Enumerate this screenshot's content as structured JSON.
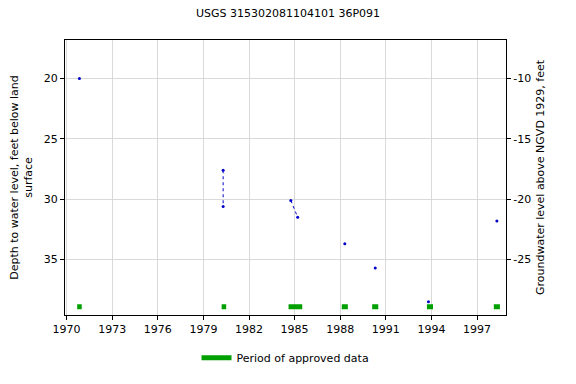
{
  "chart_data": {
    "type": "scatter",
    "title": "USGS 315302081104101 36P091",
    "y_label": "Depth to water level, feet below land\nsurface",
    "y2_label": "Groundwater level above NGVD 1929, feet",
    "x": [
      1970.85,
      null,
      1980.3,
      1980.3,
      null,
      1984.75,
      1985.2,
      null,
      1988.3,
      null,
      1990.3,
      null,
      1993.8,
      null,
      1998.3
    ],
    "series": [
      {
        "color": "#0000cc",
        "marker": "circle",
        "line_style": "dot",
        "values": [
          20.0,
          null,
          27.6,
          30.6,
          null,
          30.1,
          31.5,
          null,
          33.7,
          null,
          35.7,
          null,
          38.5,
          null,
          31.8
        ]
      }
    ],
    "approved_periods": {
      "name": "Period of approved data",
      "color": "#00a000",
      "ranges": [
        [
          1970.7,
          1971.0
        ],
        [
          1980.2,
          1980.5
        ],
        [
          1984.6,
          1985.5
        ],
        [
          1988.1,
          1988.5
        ],
        [
          1990.1,
          1990.5
        ],
        [
          1993.7,
          1994.1
        ],
        [
          1998.1,
          1998.5
        ]
      ]
    },
    "xlim": [
      1969.9,
      1998.9
    ],
    "xticks": [
      1970,
      1973,
      1976,
      1979,
      1982,
      1985,
      1988,
      1991,
      1994,
      1997
    ],
    "ylim": [
      39.6,
      16.8
    ],
    "yticks": [
      20,
      25,
      30,
      35
    ],
    "y2lim": [
      -29.6,
      -6.8
    ],
    "y2ticks": [
      -25,
      -20,
      -15,
      -10
    ],
    "grid": true,
    "legend": "bottom"
  }
}
